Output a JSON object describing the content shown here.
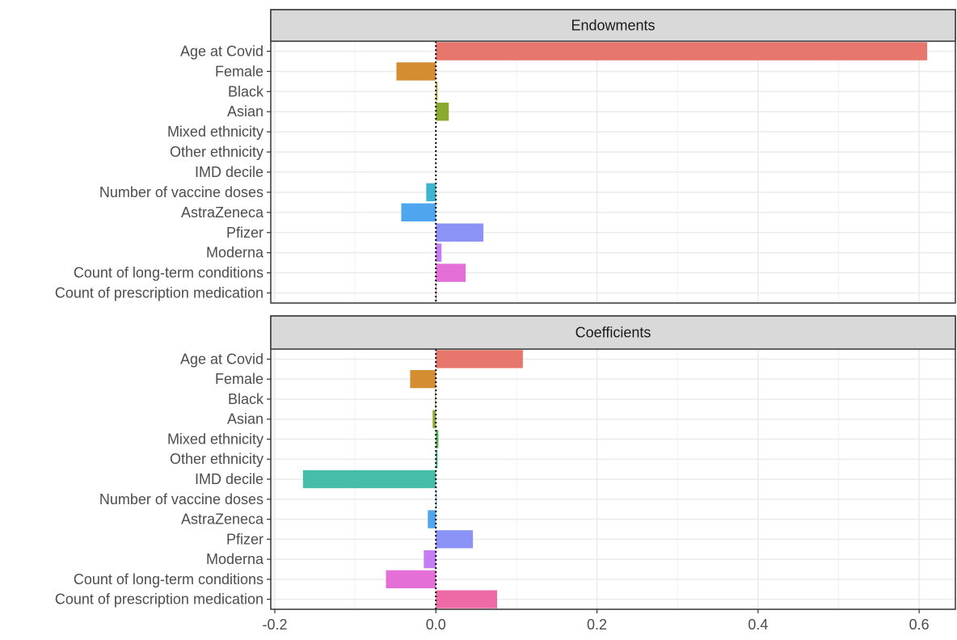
{
  "chart_data": {
    "type": "bar",
    "orientation": "horizontal",
    "categories": [
      "Age at Covid",
      "Female",
      "Black",
      "Asian",
      "Mixed ethnicity",
      "Other ethnicity",
      "IMD decile",
      "Number of vaccine doses",
      "AstraZeneca",
      "Pfizer",
      "Moderna",
      "Count of long-term conditions",
      "Count of prescription medication"
    ],
    "category_colors": [
      "#E7776D",
      "#D58D31",
      "#B7A032",
      "#8AAA2E",
      "#4DB346",
      "#31B67E",
      "#46BDA8",
      "#3EB5CE",
      "#4EA7EE",
      "#8B93F6",
      "#C57DF4",
      "#E46FD7",
      "#EE6AA7"
    ],
    "panels": [
      {
        "strip": "Endowments",
        "values": [
          0.61,
          -0.049,
          0.002,
          0.016,
          0.0,
          0.0,
          0.0,
          -0.012,
          -0.043,
          0.059,
          0.007,
          0.037,
          0.001
        ]
      },
      {
        "strip": "Coefficients",
        "values": [
          0.108,
          -0.032,
          -0.001,
          -0.004,
          0.003,
          0.002,
          -0.165,
          0.001,
          -0.01,
          0.046,
          -0.015,
          -0.062,
          0.076
        ]
      }
    ],
    "xlim": [
      -0.205,
      0.645
    ],
    "xticks": [
      -0.2,
      0.0,
      0.2,
      0.4,
      0.6
    ],
    "xtick_labels": [
      "-0.2",
      "0.0",
      "0.2",
      "0.4",
      "0.6"
    ],
    "reference_line": 0,
    "grid": true,
    "theme": "bw"
  }
}
